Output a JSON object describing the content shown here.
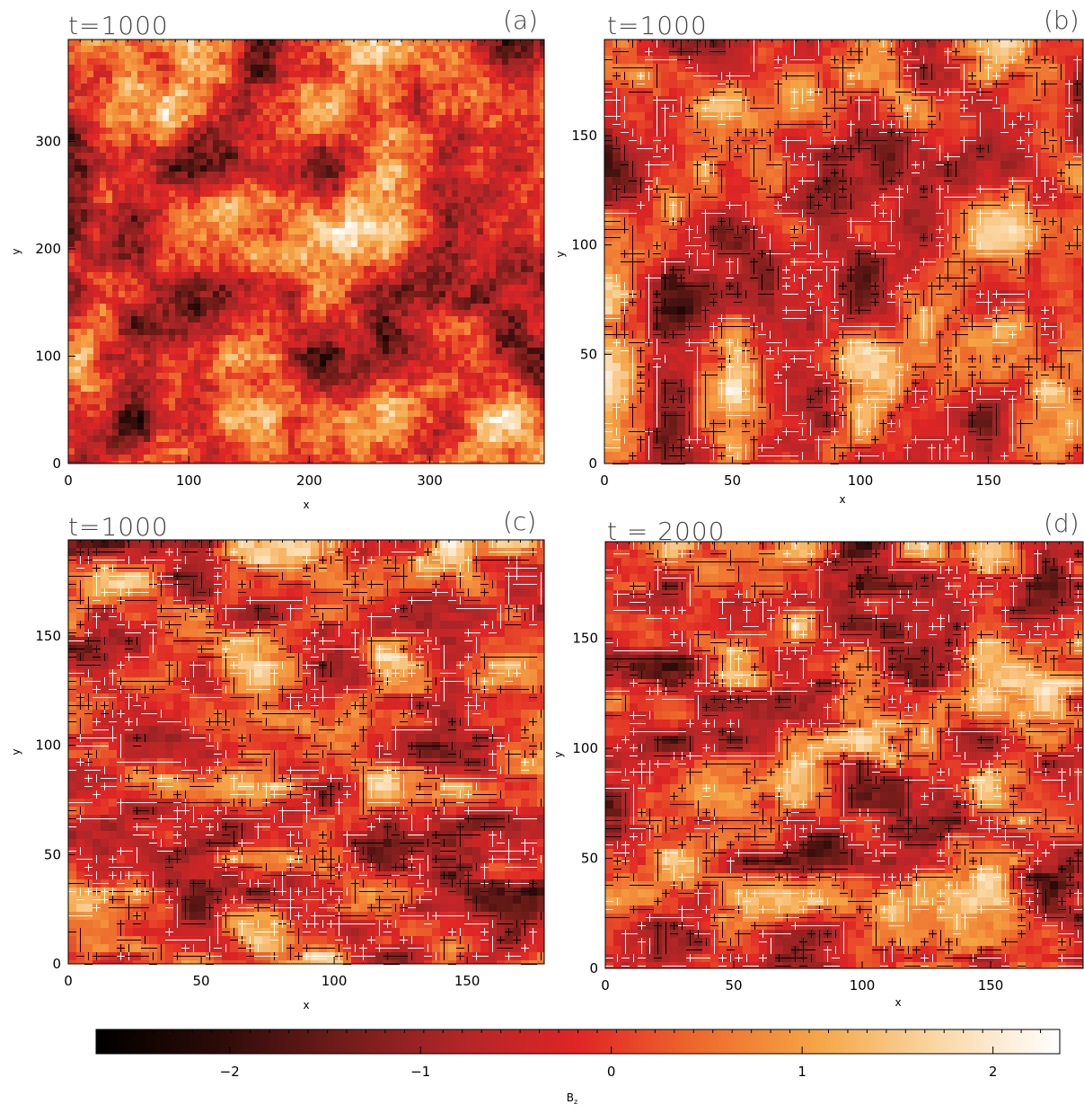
{
  "chart_data": {
    "type": "heatmap",
    "panels": [
      {
        "id": "a",
        "panel_label": "(a)",
        "time_label": "t=1000",
        "xlabel": "x",
        "ylabel": "y",
        "xlim": [
          0,
          395
        ],
        "ylim": [
          0,
          395
        ],
        "xticks": [
          0,
          100,
          200,
          300
        ],
        "yticks": [
          0,
          100,
          200,
          300
        ],
        "contours": false
      },
      {
        "id": "b",
        "panel_label": "(b)",
        "time_label": "t=1000",
        "xlabel": "x",
        "ylabel": "y",
        "xlim": [
          0,
          187
        ],
        "ylim": [
          0,
          194
        ],
        "xticks": [
          0,
          50,
          100,
          150
        ],
        "yticks": [
          0,
          50,
          100,
          150
        ],
        "contours": true
      },
      {
        "id": "c",
        "panel_label": "(c)",
        "time_label": "t=1000",
        "xlabel": "x",
        "ylabel": "y",
        "xlim": [
          0,
          179
        ],
        "ylim": [
          0,
          194
        ],
        "xticks": [
          0,
          50,
          100,
          150
        ],
        "yticks": [
          0,
          50,
          100,
          150
        ],
        "contours": true
      },
      {
        "id": "d",
        "panel_label": "(d)",
        "time_label": "t = 2000",
        "xlabel": "x",
        "ylabel": "y",
        "xlim": [
          0,
          186
        ],
        "ylim": [
          0,
          194
        ],
        "xticks": [
          0,
          50,
          100,
          150
        ],
        "yticks": [
          0,
          50,
          100,
          150
        ],
        "contours": true
      }
    ],
    "colorbar": {
      "label": "B",
      "label_subscript": "z",
      "range": [
        -2.7,
        2.35
      ],
      "ticks": [
        -2,
        -1,
        0,
        1,
        2
      ],
      "tick_labels": [
        "−2",
        "−1",
        "0",
        "1",
        "2"
      ],
      "colormap": [
        "#000000",
        "#2a0b08",
        "#6e1c18",
        "#b02628",
        "#e02525",
        "#ee6a2c",
        "#f5a646",
        "#fad8a6",
        "#ffffff"
      ]
    }
  }
}
